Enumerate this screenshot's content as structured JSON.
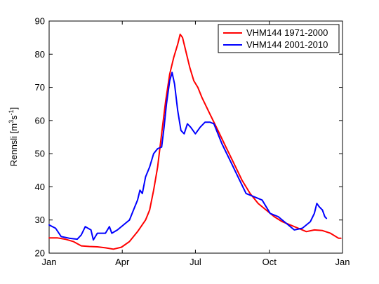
{
  "chart_data": {
    "type": "line",
    "title": "",
    "xlabel": "",
    "ylabel": {
      "text": "Rennsli [m",
      "sup1": "3",
      "mid": "s",
      "sup2": "-1",
      "end": "]"
    },
    "xlim": [
      0,
      365
    ],
    "ylim": [
      20,
      90
    ],
    "x_ticks": [
      {
        "value": 0,
        "label": "Jan"
      },
      {
        "value": 91,
        "label": "Apr"
      },
      {
        "value": 182,
        "label": "Jul"
      },
      {
        "value": 274,
        "label": "Oct"
      },
      {
        "value": 365,
        "label": "Jan"
      }
    ],
    "y_ticks": [
      20,
      30,
      40,
      50,
      60,
      70,
      80,
      90
    ],
    "legend_position": "top-right",
    "series": [
      {
        "name": "VHM144 1971-2000",
        "color": "#ff0000",
        "points": [
          [
            0,
            24.6
          ],
          [
            10,
            24.6
          ],
          [
            20,
            24.2
          ],
          [
            30,
            23.5
          ],
          [
            40,
            22.2
          ],
          [
            50,
            22.0
          ],
          [
            60,
            21.9
          ],
          [
            70,
            21.6
          ],
          [
            80,
            21.2
          ],
          [
            90,
            21.8
          ],
          [
            100,
            23.5
          ],
          [
            110,
            26.5
          ],
          [
            120,
            30
          ],
          [
            125,
            33
          ],
          [
            130,
            39
          ],
          [
            135,
            46
          ],
          [
            140,
            56
          ],
          [
            145,
            66
          ],
          [
            150,
            74
          ],
          [
            155,
            79
          ],
          [
            160,
            83
          ],
          [
            163,
            86
          ],
          [
            166,
            85
          ],
          [
            170,
            81
          ],
          [
            175,
            76
          ],
          [
            180,
            72
          ],
          [
            185,
            70
          ],
          [
            190,
            67
          ],
          [
            200,
            62
          ],
          [
            210,
            57
          ],
          [
            220,
            52
          ],
          [
            230,
            47
          ],
          [
            240,
            42
          ],
          [
            250,
            38
          ],
          [
            260,
            35
          ],
          [
            270,
            33
          ],
          [
            280,
            31
          ],
          [
            290,
            29.5
          ],
          [
            300,
            28.5
          ],
          [
            310,
            27.5
          ],
          [
            320,
            26.5
          ],
          [
            330,
            27
          ],
          [
            340,
            26.8
          ],
          [
            350,
            26
          ],
          [
            360,
            24.5
          ],
          [
            363,
            24.5
          ]
        ]
      },
      {
        "name": "VHM144 2001-2010",
        "color": "#0000ff",
        "points": [
          [
            0,
            28.5
          ],
          [
            8,
            27.5
          ],
          [
            15,
            25
          ],
          [
            25,
            24.5
          ],
          [
            35,
            24.2
          ],
          [
            40,
            25.5
          ],
          [
            45,
            28
          ],
          [
            52,
            27
          ],
          [
            55,
            24
          ],
          [
            60,
            26
          ],
          [
            70,
            26
          ],
          [
            75,
            28
          ],
          [
            78,
            26
          ],
          [
            85,
            27
          ],
          [
            95,
            29
          ],
          [
            100,
            30
          ],
          [
            105,
            33
          ],
          [
            110,
            36
          ],
          [
            113,
            39
          ],
          [
            116,
            38
          ],
          [
            120,
            43
          ],
          [
            125,
            46
          ],
          [
            130,
            50
          ],
          [
            135,
            51.5
          ],
          [
            140,
            52
          ],
          [
            143,
            58
          ],
          [
            146,
            65
          ],
          [
            150,
            72
          ],
          [
            153,
            74.5
          ],
          [
            156,
            71
          ],
          [
            160,
            63
          ],
          [
            164,
            57
          ],
          [
            168,
            56
          ],
          [
            172,
            59
          ],
          [
            176,
            58
          ],
          [
            182,
            56
          ],
          [
            188,
            58
          ],
          [
            194,
            59.5
          ],
          [
            200,
            59.5
          ],
          [
            205,
            59
          ],
          [
            215,
            53
          ],
          [
            225,
            48
          ],
          [
            235,
            43
          ],
          [
            245,
            38
          ],
          [
            255,
            37
          ],
          [
            265,
            36
          ],
          [
            275,
            32
          ],
          [
            285,
            31
          ],
          [
            295,
            29
          ],
          [
            305,
            27
          ],
          [
            315,
            27.5
          ],
          [
            325,
            29.5
          ],
          [
            330,
            32
          ],
          [
            333,
            35
          ],
          [
            336,
            34
          ],
          [
            340,
            33
          ],
          [
            343,
            31
          ],
          [
            345,
            30.5
          ]
        ]
      }
    ]
  }
}
